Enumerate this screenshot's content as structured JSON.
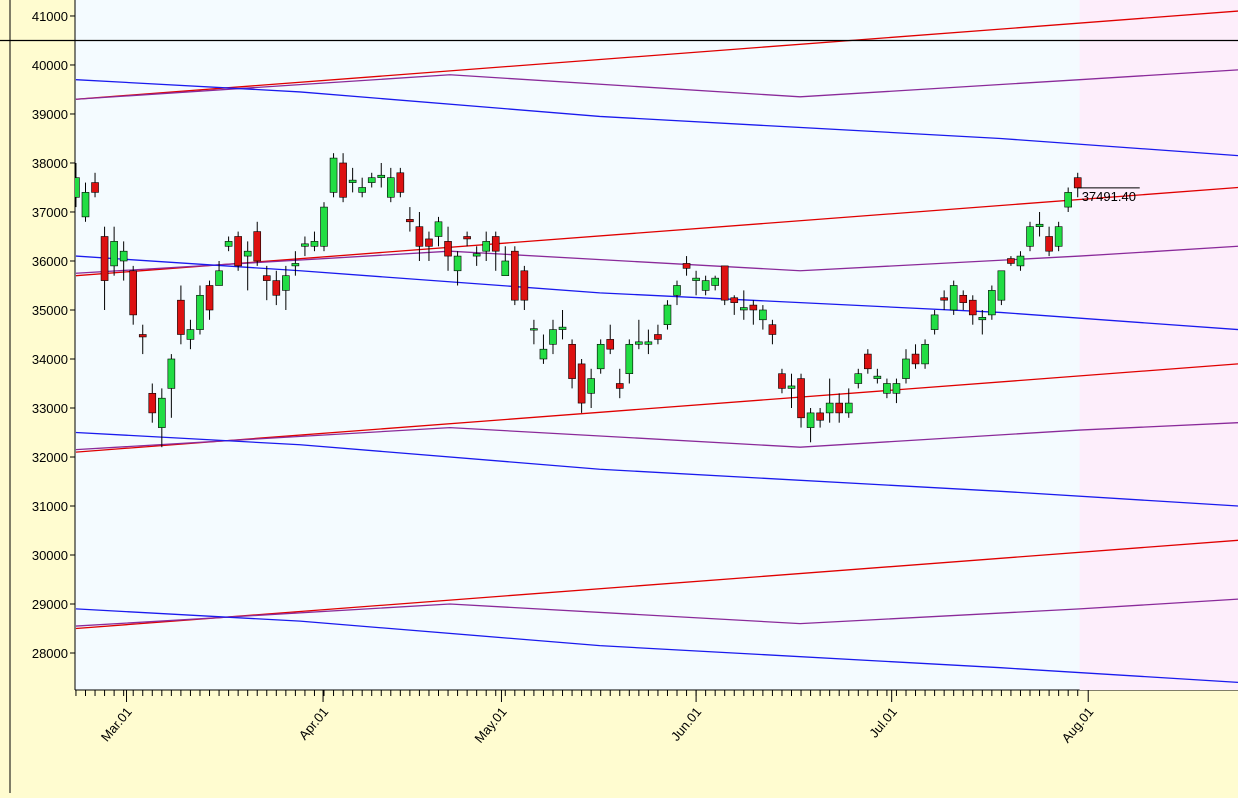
{
  "chart_data": {
    "type": "candlestick",
    "x": [
      0,
      1,
      2,
      3,
      4,
      5,
      6,
      7,
      8,
      9,
      10,
      11,
      12,
      13,
      14,
      15,
      16,
      17,
      18,
      19,
      20,
      21,
      22,
      23,
      24,
      25,
      26,
      27,
      28,
      29,
      30,
      31,
      32,
      33,
      34,
      35,
      36,
      37,
      38,
      39,
      40,
      41,
      42,
      43,
      44,
      45,
      46,
      47,
      48,
      49,
      50,
      51,
      52,
      53,
      54,
      55,
      56,
      57,
      58,
      59,
      60,
      61,
      62,
      63,
      64,
      65,
      66,
      67,
      68,
      69,
      70,
      71,
      72,
      73,
      74,
      75,
      76,
      77,
      78,
      79,
      80,
      81,
      82,
      83,
      84,
      85,
      86,
      87,
      88,
      89,
      90,
      91,
      92,
      93,
      94,
      95,
      96,
      97,
      98,
      99,
      100,
      101,
      102,
      103,
      104,
      105
    ],
    "open": [
      37300,
      36900,
      37600,
      36500,
      35900,
      36000,
      35800,
      34500,
      33300,
      32600,
      33400,
      35200,
      34400,
      34600,
      35500,
      35500,
      36300,
      36500,
      36100,
      36600,
      35700,
      35600,
      35400,
      35900,
      36300,
      36300,
      36300,
      37400,
      38000,
      37600,
      37400,
      37600,
      37700,
      37300,
      37800,
      36850,
      36700,
      36450,
      36500,
      36400,
      35800,
      36500,
      36100,
      36200,
      36500,
      35700,
      36200,
      35800,
      34600,
      34000,
      34300,
      34600,
      34300,
      33900,
      33300,
      33800,
      34400,
      33500,
      33700,
      34300,
      34300,
      34500,
      34700,
      35300,
      35950,
      35600,
      35400,
      35500,
      35900,
      35250,
      35000,
      35100,
      34800,
      34700,
      33700,
      33400,
      33600,
      32600,
      32900,
      32900,
      33100,
      32900,
      33500,
      34100,
      33600,
      33300,
      33300,
      33600,
      34100,
      33900,
      34600,
      35250,
      35000,
      35300,
      35200,
      34800,
      34900,
      35200,
      36050,
      35900,
      36300,
      36700,
      36500,
      36300,
      37100,
      37700
    ],
    "high": [
      38000,
      37600,
      37800,
      36700,
      36700,
      36400,
      35900,
      34700,
      33500,
      33400,
      34100,
      35500,
      34800,
      35500,
      35600,
      36000,
      36500,
      36600,
      36400,
      36800,
      35900,
      35800,
      35900,
      36200,
      36500,
      36600,
      37200,
      38200,
      38200,
      37900,
      37700,
      37800,
      38000,
      37900,
      37900,
      37100,
      37000,
      36600,
      36900,
      36700,
      36200,
      36600,
      36300,
      36600,
      36600,
      36300,
      36300,
      35900,
      34800,
      34500,
      34800,
      35000,
      34400,
      34000,
      33800,
      34400,
      34700,
      33800,
      34400,
      34800,
      34600,
      34700,
      35200,
      35600,
      36100,
      35800,
      35700,
      35700,
      35900,
      35300,
      35400,
      35200,
      35100,
      34800,
      33800,
      33700,
      33700,
      33000,
      33000,
      33600,
      33300,
      33400,
      33800,
      34200,
      33800,
      33600,
      33600,
      34200,
      34300,
      34400,
      35000,
      35400,
      35600,
      35400,
      35300,
      35000,
      35500,
      35800,
      36100,
      36200,
      36800,
      37000,
      36700,
      36800,
      37500,
      37800
    ],
    "low": [
      37100,
      36800,
      37300,
      35000,
      35700,
      35600,
      34700,
      34100,
      32700,
      32200,
      32800,
      34300,
      34200,
      34500,
      34800,
      35500,
      36200,
      35800,
      35400,
      35900,
      35200,
      35100,
      35000,
      35700,
      36100,
      36200,
      36200,
      37300,
      37200,
      37400,
      37300,
      37500,
      37500,
      37200,
      37300,
      36600,
      36000,
      36000,
      36300,
      35800,
      35500,
      36300,
      35900,
      36000,
      35800,
      35700,
      35100,
      35000,
      34300,
      33900,
      34100,
      34400,
      33400,
      32900,
      33000,
      33700,
      34100,
      33200,
      33500,
      34200,
      34100,
      34300,
      34600,
      35100,
      35700,
      35300,
      35300,
      35400,
      35100,
      34900,
      34800,
      34700,
      34600,
      34300,
      33300,
      33000,
      32600,
      32300,
      32600,
      32700,
      32700,
      32800,
      33400,
      33700,
      33500,
      33200,
      33100,
      33500,
      33800,
      33800,
      34500,
      35000,
      34900,
      35000,
      34700,
      34500,
      34800,
      35100,
      35900,
      35800,
      36200,
      36500,
      36100,
      36200,
      37000,
      37300
    ],
    "close": [
      37700,
      37400,
      37400,
      35600,
      36400,
      36200,
      34900,
      34450,
      32900,
      33200,
      34000,
      34500,
      34600,
      35300,
      35000,
      35800,
      36400,
      35900,
      36200,
      36000,
      35600,
      35300,
      35700,
      35950,
      36350,
      36400,
      37100,
      38100,
      37300,
      37650,
      37500,
      37700,
      37750,
      37700,
      37400,
      36800,
      36300,
      36300,
      36800,
      36100,
      36100,
      36450,
      36150,
      36400,
      36200,
      36000,
      35200,
      35200,
      34620,
      34200,
      34600,
      34650,
      33600,
      33100,
      33600,
      34300,
      34200,
      33400,
      34300,
      34350,
      34350,
      34400,
      35100,
      35500,
      35850,
      35650,
      35600,
      35650,
      35200,
      35150,
      35050,
      35000,
      35000,
      34500,
      33400,
      33450,
      32800,
      32900,
      32750,
      33100,
      32900,
      33100,
      33700,
      33800,
      33650,
      33500,
      33500,
      34000,
      33900,
      34300,
      34900,
      35200,
      35500,
      35150,
      34900,
      34850,
      35400,
      35800,
      35950,
      36100,
      36700,
      36750,
      36200,
      36700,
      37400,
      37491.4
    ],
    "up_color": "#22dd44",
    "down_color": "#dd1111",
    "lines": [
      {
        "color": "#e00000",
        "x": [
          0,
          121.8
        ],
        "values": [
          39300,
          41100
        ]
      },
      {
        "color": "#e00000",
        "x": [
          0,
          121.8
        ],
        "values": [
          35700,
          37500
        ]
      },
      {
        "color": "#e00000",
        "x": [
          0,
          121.8
        ],
        "values": [
          32100,
          33900
        ]
      },
      {
        "color": "#e00000",
        "x": [
          0,
          121.8
        ],
        "values": [
          28500,
          30300
        ]
      },
      {
        "color": "#8a2a9a",
        "x": [
          0,
          39.2,
          75.9,
          105.2,
          121.8
        ],
        "values": [
          39300,
          39800,
          39350,
          39700,
          39900
        ]
      },
      {
        "color": "#8a2a9a",
        "x": [
          0,
          39.2,
          75.9,
          105.2,
          121.8
        ],
        "values": [
          35750,
          36200,
          35800,
          36100,
          36300
        ]
      },
      {
        "color": "#8a2a9a",
        "x": [
          0,
          39.2,
          75.9,
          105.2,
          121.8
        ],
        "values": [
          32150,
          32600,
          32200,
          32550,
          32700
        ]
      },
      {
        "color": "#8a2a9a",
        "x": [
          0,
          39.2,
          75.9,
          105.2,
          121.8
        ],
        "values": [
          28550,
          29000,
          28600,
          28900,
          29100
        ]
      },
      {
        "color": "#1a1aee",
        "x": [
          0,
          23.5,
          54.9,
          96.9,
          121.8
        ],
        "values": [
          39700,
          39450,
          38950,
          38500,
          38150
        ]
      },
      {
        "color": "#1a1aee",
        "x": [
          0,
          23.5,
          54.9,
          96.9,
          121.8
        ],
        "values": [
          36100,
          35800,
          35350,
          34950,
          34600
        ]
      },
      {
        "color": "#1a1aee",
        "x": [
          0,
          23.5,
          54.9,
          96.9,
          121.8
        ],
        "values": [
          32500,
          32250,
          31750,
          31300,
          31000
        ]
      },
      {
        "color": "#1a1aee",
        "x": [
          0,
          23.5,
          54.9,
          96.9,
          121.8
        ],
        "values": [
          28900,
          28650,
          28150,
          27700,
          27400
        ]
      }
    ],
    "xlim": [
      -0.1,
      121.8
    ],
    "ylim": [
      27245,
      41326
    ],
    "xticks": [
      {
        "value": 5.3,
        "label": "Mar.01"
      },
      {
        "value": 25.9,
        "label": "Apr.01"
      },
      {
        "value": 44.6,
        "label": "May.01"
      },
      {
        "value": 65.0,
        "label": "Jun.01"
      },
      {
        "value": 85.5,
        "label": "Jul.01"
      },
      {
        "value": 106.1,
        "label": "Aug.01"
      }
    ],
    "yticks": [
      28000,
      29000,
      30000,
      31000,
      32000,
      33000,
      34000,
      35000,
      36000,
      37000,
      38000,
      39000,
      40000,
      41000
    ],
    "hline": 40500,
    "last_label": {
      "value": 37491.4,
      "label": "37491.40"
    },
    "shade_from": 105.2
  }
}
